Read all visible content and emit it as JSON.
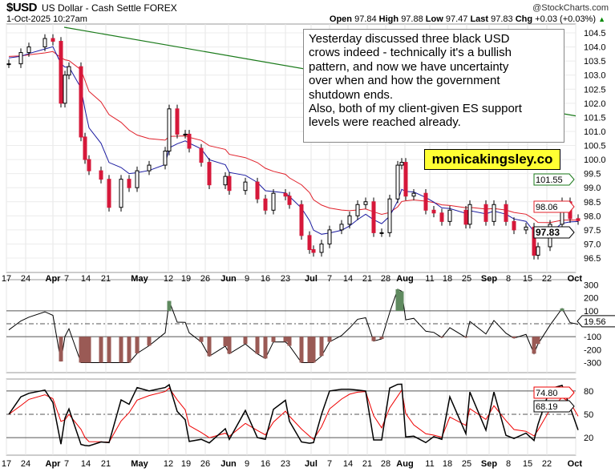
{
  "header": {
    "symbol": "$USD",
    "name": "US Dollar - Cash Settle  FOREX",
    "datetime": "1-Oct-2025 10:27am",
    "credit": "@StockCharts.com",
    "open_label": "Open",
    "open": "97.84",
    "high_label": "High",
    "high": "97.88",
    "low_label": "Low",
    "low": "97.47",
    "last_label": "Last",
    "last": "97.83",
    "chg_label": "Chg",
    "chg": "+0.03 (+0.03%)"
  },
  "annotation": {
    "lines": [
      "Yesterday discussed three black USD",
      "crows indeed - technically it's a bullish",
      "pattern, and now we have uncertainty",
      "over when and how the government",
      "shutdown ends.",
      "Also, both of my client-given ES support",
      "levels were reached already."
    ],
    "website": "monicakingsley.co"
  },
  "colors": {
    "up": "#ffffff",
    "down": "#d6183a",
    "ma_fast": "#1a1aa0",
    "ma_slow": "#e0202a",
    "ma_long": "#1a7a1a",
    "cci_fill_pos": "#5f8a5f",
    "cci_fill_neg": "#9a5a55"
  },
  "chart_data": [
    {
      "type": "candlestick",
      "panel": "price",
      "ylim": [
        96.2,
        104.8
      ],
      "yticks": [
        "104.5",
        "104.0",
        "103.5",
        "103.0",
        "102.5",
        "102.0",
        "101.5",
        "101.0",
        "100.5",
        "100.0",
        "99.5",
        "99.0",
        "98.5",
        "98.0",
        "97.5",
        "97.0",
        "96.5"
      ],
      "xticks": [
        "17",
        "24",
        "Apr",
        "7",
        "14",
        "21",
        "May",
        "12",
        "19",
        "26",
        "Jun",
        "9",
        "16",
        "23",
        "Jul",
        "7",
        "14",
        "21",
        "28",
        "Aug",
        "11",
        "18",
        "25",
        "Sep",
        "8",
        "15",
        "22",
        "Oct"
      ],
      "dates": [
        "2025-03-17",
        "2025-03-20",
        "2025-03-24",
        "2025-03-28",
        "2025-04-01",
        "2025-04-03",
        "2025-04-04",
        "2025-04-07",
        "2025-04-10",
        "2025-04-11",
        "2025-04-14",
        "2025-04-17",
        "2025-04-21",
        "2025-04-24",
        "2025-04-28",
        "2025-04-30",
        "2025-05-05",
        "2025-05-09",
        "2025-05-12",
        "2025-05-14",
        "2025-05-16",
        "2025-05-19",
        "2025-05-22",
        "2025-05-26",
        "2025-05-30",
        "2025-06-02",
        "2025-06-06",
        "2025-06-11",
        "2025-06-13",
        "2025-06-17",
        "2025-06-20",
        "2025-06-23",
        "2025-06-26",
        "2025-06-30",
        "2025-07-01",
        "2025-07-03",
        "2025-07-07",
        "2025-07-10",
        "2025-07-14",
        "2025-07-16",
        "2025-07-18",
        "2025-07-22",
        "2025-07-24",
        "2025-07-28",
        "2025-07-30",
        "2025-07-31",
        "2025-08-01",
        "2025-08-05",
        "2025-08-08",
        "2025-08-12",
        "2025-08-14",
        "2025-08-18",
        "2025-08-22",
        "2025-08-25",
        "2025-08-29",
        "2025-09-02",
        "2025-09-05",
        "2025-09-09",
        "2025-09-12",
        "2025-09-16",
        "2025-09-17",
        "2025-09-22",
        "2025-09-25",
        "2025-09-29",
        "2025-10-01"
      ],
      "close": [
        103.4,
        103.8,
        104.0,
        104.3,
        104.2,
        102.0,
        103.0,
        103.3,
        100.8,
        100.0,
        99.6,
        99.3,
        98.3,
        99.3,
        99.0,
        99.6,
        99.8,
        100.3,
        101.8,
        100.9,
        100.9,
        100.4,
        99.9,
        99.1,
        99.4,
        98.9,
        99.2,
        98.6,
        98.2,
        98.8,
        98.7,
        98.4,
        97.3,
        96.8,
        96.7,
        97.0,
        97.5,
        97.7,
        98.0,
        98.4,
        98.5,
        97.4,
        97.4,
        98.6,
        99.8,
        99.9,
        98.7,
        98.8,
        98.2,
        98.1,
        97.8,
        98.2,
        97.7,
        98.4,
        97.8,
        98.4,
        97.8,
        97.5,
        97.6,
        96.6,
        96.9,
        97.7,
        98.5,
        97.9,
        97.83
      ],
      "ma_long": {
        "start": 104.7,
        "end": 101.55
      },
      "readouts": {
        "ma_long": "101.55",
        "ma_slow": "98.06",
        "last": "97.83"
      }
    },
    {
      "type": "line",
      "panel": "CCI",
      "yticks": [
        "300",
        "200",
        "100",
        "-100",
        "-200",
        "-300"
      ],
      "readout": "19.56"
    },
    {
      "type": "line",
      "panel": "Stochastic",
      "yticks": [
        "80",
        "50",
        "20"
      ],
      "readouts": {
        "k": "74.80",
        "d": "68.19"
      }
    }
  ]
}
